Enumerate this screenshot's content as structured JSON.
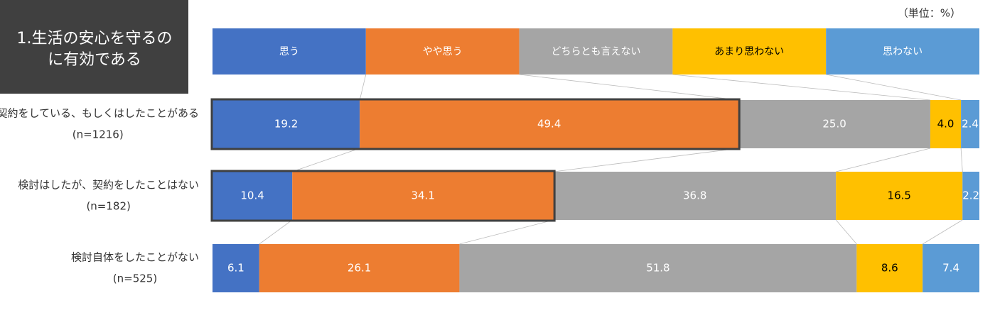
{
  "chart_data": {
    "type": "stacked-bar",
    "title": [
      "1.生活の安心を守るの",
      "に有効である"
    ],
    "unit_note": "（単位：%）",
    "categories": [
      "契約をしている、もしくはしたことがある",
      "検討はしたが、契約をしたことはない",
      "検討自体をしたことがない"
    ],
    "sample_sizes": [
      "(n=1216)",
      "(n=182)",
      "(n=525)"
    ],
    "xlim": [
      0,
      100
    ],
    "series": [
      {
        "name": "思う",
        "color": "#4472c4",
        "label_color": "#ffffff",
        "values": [
          19.2,
          10.4,
          6.1
        ]
      },
      {
        "name": "やや思う",
        "color": "#ed7d31",
        "label_color": "#ffffff",
        "values": [
          49.4,
          34.1,
          26.1
        ]
      },
      {
        "name": "どちらとも言えない",
        "color": "#a5a5a5",
        "label_color": "#ffffff",
        "values": [
          25.0,
          36.8,
          51.8
        ],
        "value_labels": [
          "25.0",
          "36.8",
          "51.8"
        ]
      },
      {
        "name": "あまり思わない",
        "color": "#ffc000",
        "label_color": "#000000",
        "values": [
          4.0,
          16.5,
          8.6
        ],
        "value_labels": [
          "4.0",
          "16.5",
          "8.6"
        ]
      },
      {
        "name": "思わない",
        "color": "#5b9bd5",
        "label_color": "#ffffff",
        "values": [
          2.4,
          2.2,
          7.4
        ]
      }
    ],
    "highlight_series": [
      0,
      1
    ],
    "highlight_rows": [
      0,
      1
    ]
  }
}
